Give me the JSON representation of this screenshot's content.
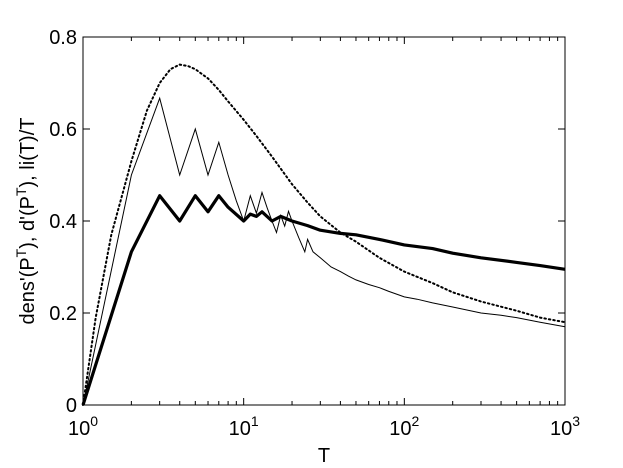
{
  "chart_data": {
    "type": "line",
    "title": "",
    "xlabel": "T",
    "ylabel_parts": {
      "p1": "dens'(P",
      "sup1": "T",
      "p2": "), d'(P",
      "sup2": "T",
      "p3": "), li(T)/T"
    },
    "xscale": "log",
    "xlim": [
      1,
      1000
    ],
    "ylim": [
      0,
      0.8
    ],
    "grid": false,
    "legend": "none",
    "x_ticks": [
      {
        "value": 1,
        "base": "10",
        "exp": "0"
      },
      {
        "value": 10,
        "base": "10",
        "exp": "1"
      },
      {
        "value": 100,
        "base": "10",
        "exp": "2"
      },
      {
        "value": 1000,
        "base": "10",
        "exp": "3"
      }
    ],
    "y_ticks": [
      {
        "value": 0,
        "label": "0"
      },
      {
        "value": 0.2,
        "label": "0.2"
      },
      {
        "value": 0.4,
        "label": "0.4"
      },
      {
        "value": 0.6,
        "label": "0.6"
      },
      {
        "value": 0.8,
        "label": "0.8"
      }
    ],
    "series": [
      {
        "style": "dotted",
        "color": "#000000",
        "points": [
          [
            1,
            0
          ],
          [
            1.2,
            0.19
          ],
          [
            1.5,
            0.37
          ],
          [
            2,
            0.53
          ],
          [
            2.5,
            0.64
          ],
          [
            3,
            0.7
          ],
          [
            3.5,
            0.73
          ],
          [
            4,
            0.74
          ],
          [
            4.5,
            0.737
          ],
          [
            5,
            0.73
          ],
          [
            6,
            0.71
          ],
          [
            7,
            0.685
          ],
          [
            8,
            0.66
          ],
          [
            10,
            0.62
          ],
          [
            12,
            0.585
          ],
          [
            15,
            0.54
          ],
          [
            20,
            0.48
          ],
          [
            25,
            0.44
          ],
          [
            30,
            0.41
          ],
          [
            40,
            0.375
          ],
          [
            50,
            0.355
          ],
          [
            70,
            0.32
          ],
          [
            100,
            0.29
          ],
          [
            150,
            0.265
          ],
          [
            200,
            0.245
          ],
          [
            300,
            0.225
          ],
          [
            500,
            0.205
          ],
          [
            700,
            0.19
          ],
          [
            1000,
            0.18
          ]
        ]
      },
      {
        "style": "thin",
        "color": "#000000",
        "points": [
          [
            1,
            0
          ],
          [
            2,
            0.5
          ],
          [
            3,
            0.667
          ],
          [
            4,
            0.5
          ],
          [
            5,
            0.6
          ],
          [
            6,
            0.5
          ],
          [
            7,
            0.571
          ],
          [
            8,
            0.5
          ],
          [
            9,
            0.444
          ],
          [
            10,
            0.4
          ],
          [
            11,
            0.455
          ],
          [
            12,
            0.417
          ],
          [
            13,
            0.462
          ],
          [
            14,
            0.429
          ],
          [
            15,
            0.4
          ],
          [
            16,
            0.375
          ],
          [
            17,
            0.412
          ],
          [
            18,
            0.389
          ],
          [
            19,
            0.421
          ],
          [
            20,
            0.4
          ],
          [
            22,
            0.364
          ],
          [
            24,
            0.333
          ],
          [
            25,
            0.36
          ],
          [
            27,
            0.333
          ],
          [
            30,
            0.32
          ],
          [
            35,
            0.3
          ],
          [
            40,
            0.29
          ],
          [
            45,
            0.28
          ],
          [
            50,
            0.272
          ],
          [
            60,
            0.262
          ],
          [
            70,
            0.255
          ],
          [
            80,
            0.247
          ],
          [
            100,
            0.235
          ],
          [
            120,
            0.23
          ],
          [
            150,
            0.222
          ],
          [
            200,
            0.213
          ],
          [
            300,
            0.2
          ],
          [
            400,
            0.195
          ],
          [
            500,
            0.19
          ],
          [
            700,
            0.18
          ],
          [
            1000,
            0.17
          ]
        ]
      },
      {
        "style": "thick",
        "color": "#000000",
        "points": [
          [
            1,
            0
          ],
          [
            2,
            0.333
          ],
          [
            3,
            0.455
          ],
          [
            4,
            0.4
          ],
          [
            5,
            0.455
          ],
          [
            6,
            0.42
          ],
          [
            7,
            0.455
          ],
          [
            8,
            0.43
          ],
          [
            10,
            0.4
          ],
          [
            11,
            0.415
          ],
          [
            12,
            0.41
          ],
          [
            13,
            0.42
          ],
          [
            15,
            0.4
          ],
          [
            17,
            0.41
          ],
          [
            20,
            0.4
          ],
          [
            25,
            0.39
          ],
          [
            30,
            0.38
          ],
          [
            40,
            0.373
          ],
          [
            50,
            0.37
          ],
          [
            70,
            0.36
          ],
          [
            100,
            0.348
          ],
          [
            150,
            0.34
          ],
          [
            200,
            0.33
          ],
          [
            300,
            0.32
          ],
          [
            500,
            0.31
          ],
          [
            700,
            0.303
          ],
          [
            1000,
            0.295
          ]
        ]
      }
    ]
  }
}
